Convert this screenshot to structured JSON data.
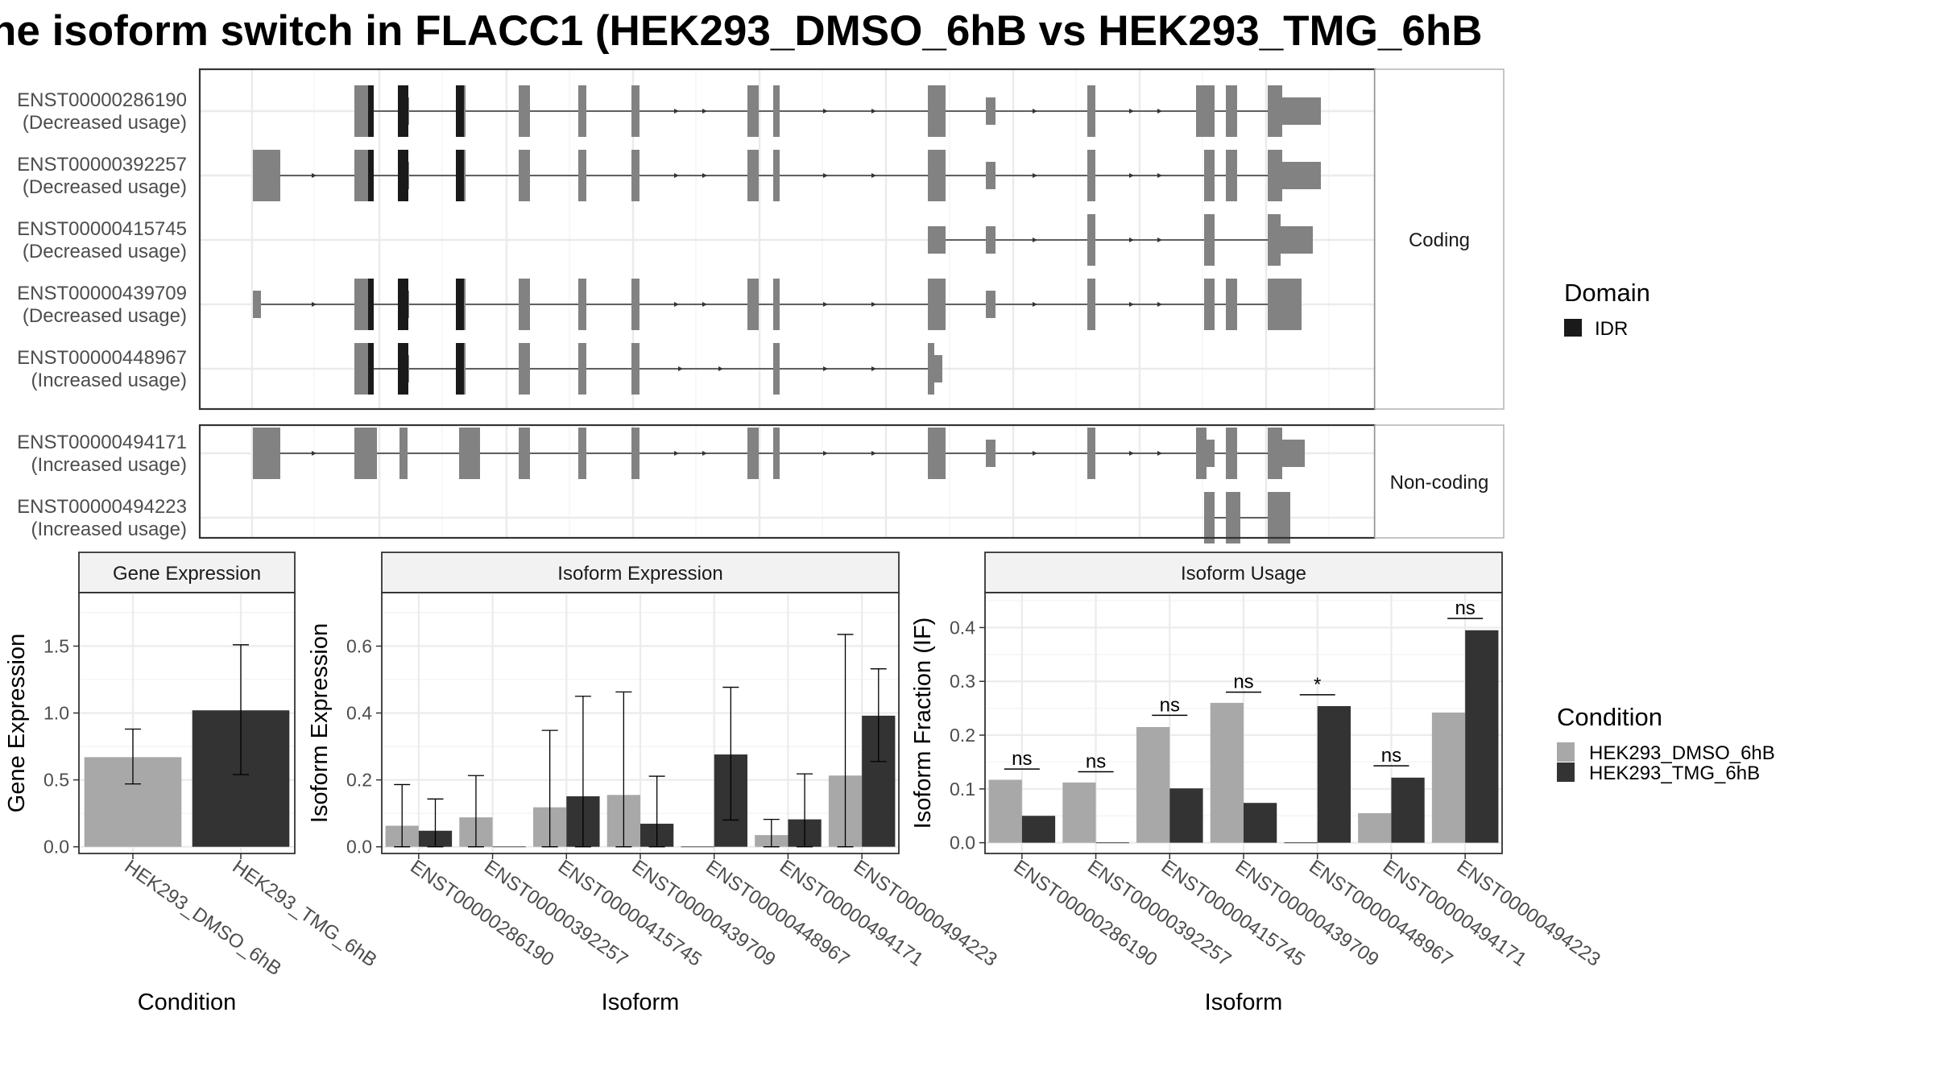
{
  "title": "he isoform switch in FLACC1 (HEK293_DMSO_6hB vs HEK293_TMG_6hB",
  "colors": {
    "exon": "#828282",
    "idr": "#1a1a1a",
    "dmso": "#a8a8a8",
    "tmg": "#333333",
    "grid": "#ebebeb",
    "strip": "#f2f2f2",
    "frame": "#333333"
  },
  "transcripts": {
    "coding_label": "Coding",
    "noncoding_label": "Non-coding",
    "coding": [
      {
        "id": "ENST00000286190",
        "usage": "(Decreased usage)"
      },
      {
        "id": "ENST00000392257",
        "usage": "(Decreased usage)"
      },
      {
        "id": "ENST00000415745",
        "usage": "(Decreased usage)"
      },
      {
        "id": "ENST00000439709",
        "usage": "(Decreased usage)"
      },
      {
        "id": "ENST00000448967",
        "usage": "(Increased usage)"
      }
    ],
    "noncoding": [
      {
        "id": "ENST00000494171",
        "usage": "(Increased usage)"
      },
      {
        "id": "ENST00000494223",
        "usage": "(Increased usage)"
      }
    ]
  },
  "legends": {
    "domain_title": "Domain",
    "domain_items": [
      {
        "label": "IDR",
        "color": "#1a1a1a"
      }
    ],
    "condition_title": "Condition",
    "condition_items": [
      {
        "label": "HEK293_DMSO_6hB",
        "color": "#a8a8a8"
      },
      {
        "label": "HEK293_TMG_6hB",
        "color": "#333333"
      }
    ]
  },
  "chart_data": [
    {
      "type": "bar",
      "title": "Gene Expression",
      "xlabel": "Condition",
      "ylabel": "Gene Expression",
      "ylim": [
        -0.05,
        1.9
      ],
      "yticks": [
        0.0,
        0.5,
        1.0,
        1.5
      ],
      "categories": [
        "HEK293_DMSO_6hB",
        "HEK293_TMG_6hB"
      ],
      "values": [
        0.67,
        1.02
      ],
      "error": [
        [
          0.47,
          0.88
        ],
        [
          0.54,
          1.51
        ]
      ]
    },
    {
      "type": "bar",
      "title": "Isoform Expression",
      "xlabel": "Isoform",
      "ylabel": "Isoform Expression",
      "ylim": [
        -0.02,
        0.76
      ],
      "yticks": [
        0.0,
        0.2,
        0.4,
        0.6
      ],
      "categories": [
        "ENST00000286190",
        "ENST00000392257",
        "ENST00000415745",
        "ENST00000439709",
        "ENST00000448967",
        "ENST00000494171",
        "ENST00000494223"
      ],
      "series": [
        {
          "name": "HEK293_DMSO_6hB",
          "values": [
            0.063,
            0.088,
            0.118,
            0.155,
            0.0,
            0.035,
            0.213
          ],
          "error": [
            [
              0.0,
              0.186
            ],
            [
              0.0,
              0.213
            ],
            [
              0.0,
              0.348
            ],
            [
              0.0,
              0.463
            ],
            null,
            [
              0.0,
              0.082
            ],
            [
              0.0,
              0.635
            ]
          ]
        },
        {
          "name": "HEK293_TMG_6hB",
          "values": [
            0.048,
            0.0,
            0.151,
            0.069,
            0.276,
            0.082,
            0.392
          ],
          "error": [
            [
              0.0,
              0.143
            ],
            null,
            [
              0.0,
              0.45
            ],
            [
              0.0,
              0.211
            ],
            [
              0.08,
              0.477
            ],
            [
              0.0,
              0.218
            ],
            [
              0.255,
              0.532
            ]
          ]
        }
      ]
    },
    {
      "type": "bar",
      "title": "Isoform Usage",
      "xlabel": "Isoform",
      "ylabel": "Isoform Fraction (IF)",
      "ylim": [
        -0.02,
        0.465
      ],
      "yticks": [
        0.0,
        0.1,
        0.2,
        0.3,
        0.4
      ],
      "categories": [
        "ENST00000286190",
        "ENST00000392257",
        "ENST00000415745",
        "ENST00000439709",
        "ENST00000448967",
        "ENST00000494171",
        "ENST00000494223"
      ],
      "series": [
        {
          "name": "HEK293_DMSO_6hB",
          "values": [
            0.117,
            0.112,
            0.215,
            0.26,
            0.0,
            0.055,
            0.242
          ]
        },
        {
          "name": "HEK293_TMG_6hB",
          "values": [
            0.05,
            0.0,
            0.101,
            0.074,
            0.254,
            0.121,
            0.395
          ]
        }
      ],
      "significance": [
        "ns",
        "ns",
        "ns",
        "ns",
        "*",
        "ns",
        "ns"
      ],
      "sig_line_y": [
        0.137,
        0.132,
        0.237,
        0.28,
        0.275,
        0.143,
        0.417
      ]
    }
  ]
}
